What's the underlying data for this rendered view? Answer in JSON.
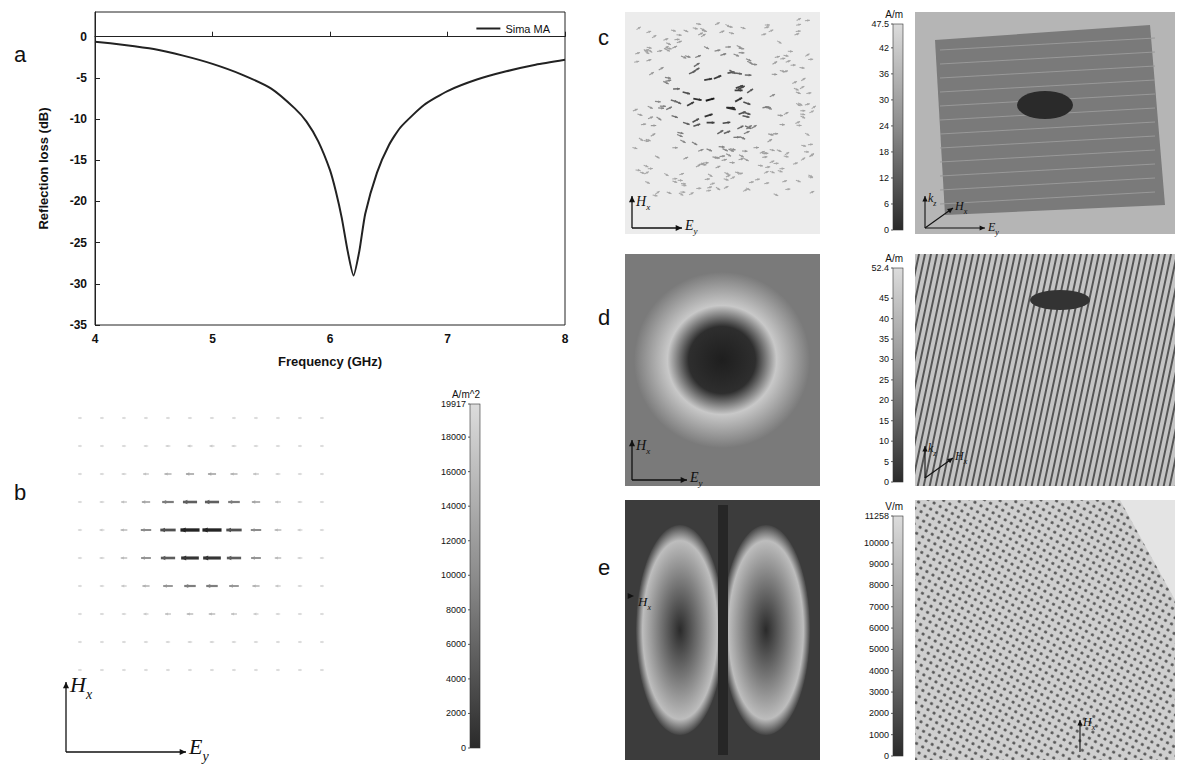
{
  "chart_data": {
    "type": "line",
    "panel_label": "a",
    "x_label": "Frequency (GHz)",
    "y_label": "Reflection loss (dB)",
    "x": [
      4,
      4.25,
      4.5,
      4.75,
      5,
      5.25,
      5.5,
      5.7,
      5.8,
      5.9,
      6.0,
      6.05,
      6.1,
      6.15,
      6.2,
      6.25,
      6.3,
      6.4,
      6.5,
      6.6,
      6.8,
      7.0,
      7.25,
      7.5,
      7.75,
      8
    ],
    "series": [
      {
        "name": "Sima MA",
        "color": "#222222",
        "values": [
          -0.6,
          -1.0,
          -1.5,
          -2.3,
          -3.3,
          -4.6,
          -6.3,
          -8.7,
          -10.3,
          -12.7,
          -16.2,
          -18.8,
          -22.0,
          -26.0,
          -29.0,
          -26.0,
          -21.5,
          -16.5,
          -13.2,
          -11.0,
          -8.3,
          -6.6,
          -5.2,
          -4.2,
          -3.4,
          -2.8
        ]
      }
    ],
    "xlim": [
      4,
      8
    ],
    "xticks": [
      4,
      5,
      6,
      7,
      8
    ],
    "ylim": [
      -35,
      3
    ],
    "yticks": [
      -35,
      -30,
      -25,
      -20,
      -15,
      -10,
      -5,
      0
    ],
    "legend": "upper right",
    "grid": false
  },
  "field_maps": [
    {
      "panel_label": "b",
      "unit": "A/m^2",
      "colorbar_range": [
        0,
        19917
      ],
      "colorbar_ticks": [
        0,
        2000,
        4000,
        6000,
        8000,
        10000,
        12000,
        14000,
        16000,
        18000,
        19917
      ],
      "map_axes": [
        "Hx",
        "Ey"
      ]
    },
    {
      "panel_label": "c",
      "unit": "A/m",
      "colorbar_range": [
        0,
        47.5
      ],
      "colorbar_ticks": [
        0,
        6,
        12,
        18,
        24,
        30,
        36,
        42,
        47.5
      ],
      "map_axes": [
        "Hx",
        "Ey"
      ],
      "view_axes": [
        "kz",
        "Hx",
        "Ey"
      ]
    },
    {
      "panel_label": "d",
      "unit": "A/m",
      "colorbar_range": [
        0,
        52.4
      ],
      "colorbar_ticks": [
        0,
        5,
        10,
        15,
        20,
        25,
        30,
        35,
        40,
        45,
        52.4
      ],
      "map_axes": [
        "Hx",
        "Ey"
      ],
      "view_axes": [
        "kz",
        "Hx"
      ]
    },
    {
      "panel_label": "e",
      "unit": "V/m",
      "colorbar_range": [
        0,
        11258
      ],
      "colorbar_ticks": [
        0,
        1000,
        2000,
        3000,
        4000,
        5000,
        6000,
        7000,
        8000,
        9000,
        10000,
        11258
      ],
      "map_axes": [
        "Hx"
      ],
      "view_axes": [
        "Hx"
      ]
    }
  ]
}
